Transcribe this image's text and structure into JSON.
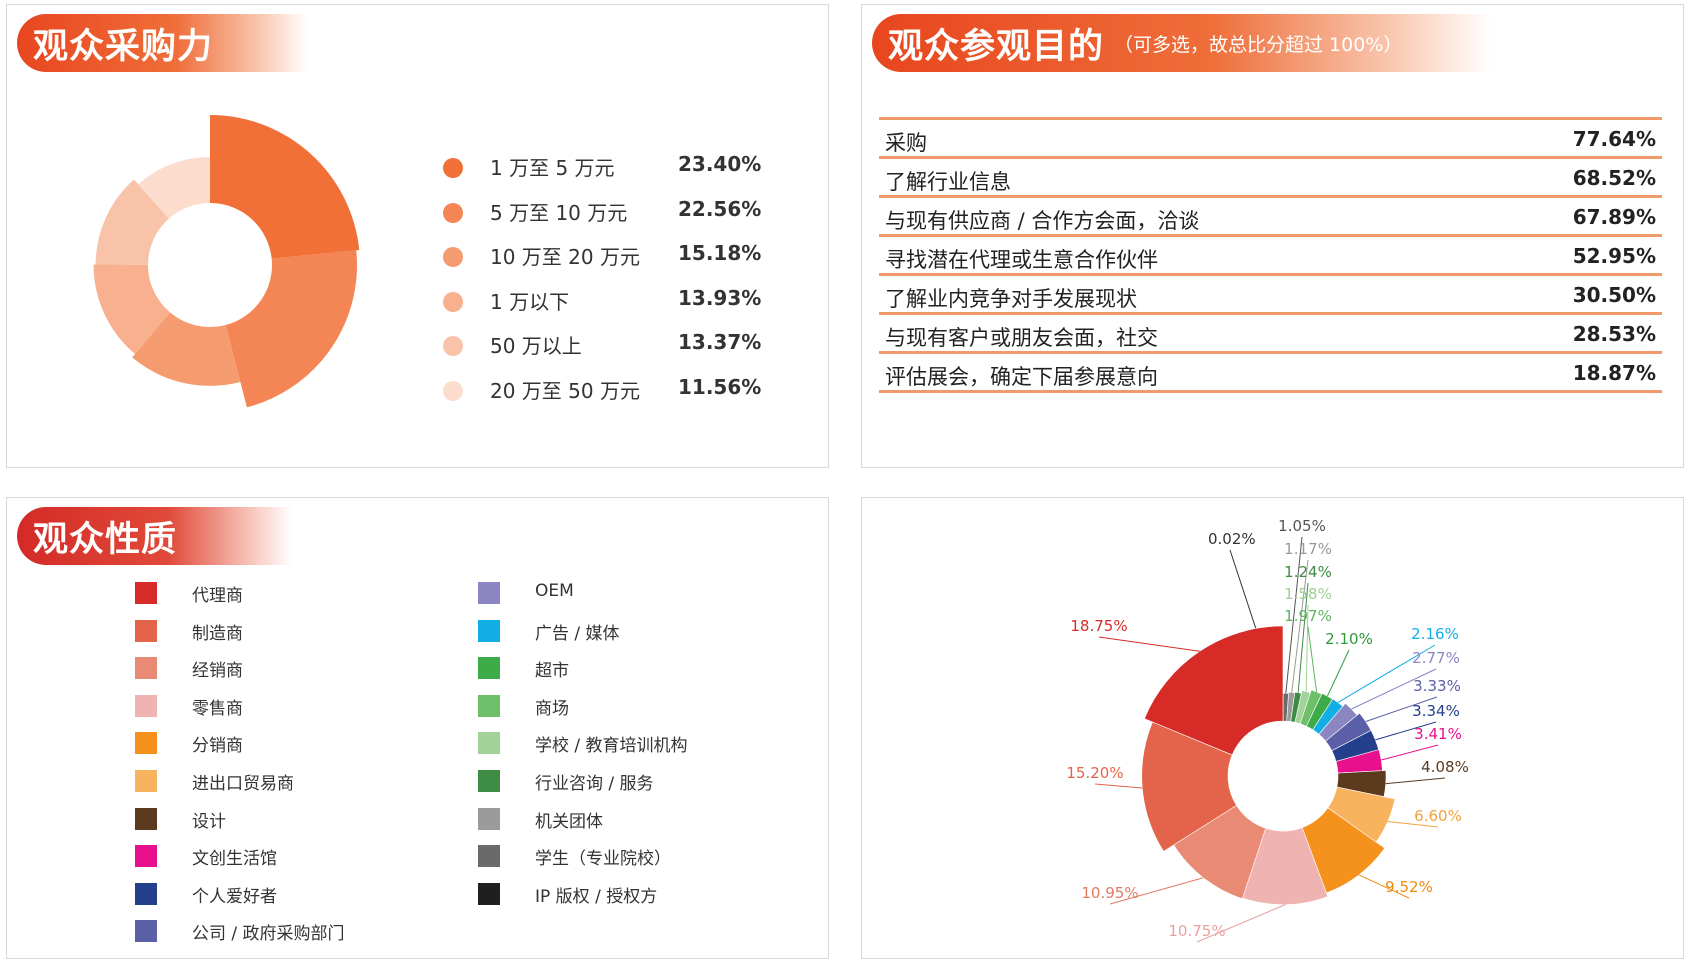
{
  "purchasing": {
    "title": "观众采购力",
    "chart_data": {
      "type": "pie",
      "categories": [
        "1 万至 5 万元",
        "5 万至 10 万元",
        "10 万至 20 万元",
        "1 万以下",
        "50 万以上",
        "20 万至 50 万元"
      ],
      "values": [
        23.4,
        22.56,
        15.18,
        13.93,
        13.37,
        11.56
      ],
      "labels": [
        "23.40%",
        "22.56%",
        "15.18%",
        "13.93%",
        "13.37%",
        "11.56%"
      ],
      "colors": [
        "#f07038",
        "#f38654",
        "#f59b70",
        "#f8b08e",
        "#f9c3a9",
        "#fcdccd"
      ]
    }
  },
  "purpose": {
    "title": "观众参观目的",
    "note": "（可多选，故总比分超过 100%）",
    "chart_data": {
      "type": "table",
      "rows": [
        {
          "label": "采购",
          "value": "77.64%"
        },
        {
          "label": "了解行业信息",
          "value": "68.52%"
        },
        {
          "label": "与现有供应商 / 合作方会面，洽谈",
          "value": "67.89%"
        },
        {
          "label": "寻找潜在代理或生意合作伙伴",
          "value": "52.95%"
        },
        {
          "label": "了解业内竞争对手发展现状",
          "value": "30.50%"
        },
        {
          "label": "与现有客户或朋友会面，社交",
          "value": "28.53%"
        },
        {
          "label": "评估展会，确定下届参展意向",
          "value": "18.87%"
        }
      ]
    }
  },
  "nature": {
    "title": "观众性质",
    "legend_left": [
      {
        "label": "代理商",
        "color": "#d62b27"
      },
      {
        "label": "制造商",
        "color": "#e3644a"
      },
      {
        "label": "经销商",
        "color": "#e88a74"
      },
      {
        "label": "零售商",
        "color": "#efb3b2"
      },
      {
        "label": "分销商",
        "color": "#f5921e"
      },
      {
        "label": "进出口贸易商",
        "color": "#f8b35e"
      },
      {
        "label": "设计",
        "color": "#5c3a1e"
      },
      {
        "label": "文创生活馆",
        "color": "#e8108c"
      },
      {
        "label": "个人爱好者",
        "color": "#243f8c"
      },
      {
        "label": "公司 / 政府采购部门",
        "color": "#5a5fa8"
      }
    ],
    "legend_right": [
      {
        "label": "OEM",
        "color": "#8b86c2"
      },
      {
        "label": "广告 / 媒体",
        "color": "#12aee6"
      },
      {
        "label": "超市",
        "color": "#3cab48"
      },
      {
        "label": "商场",
        "color": "#6dbf6a"
      },
      {
        "label": "学校 / 教育培训机构",
        "color": "#a3d29a"
      },
      {
        "label": "行业咨询 / 服务",
        "color": "#3e8b44"
      },
      {
        "label": "机关团体",
        "color": "#9b9b9b"
      },
      {
        "label": "学生（专业院校）",
        "color": "#6a6a6a"
      },
      {
        "label": "IP 版权 / 授权方",
        "color": "#1f1f1f"
      }
    ],
    "chart_data": {
      "type": "pie",
      "slices": [
        {
          "label": "0.02%",
          "value": 0.02,
          "color": "#1f1f1f",
          "label_color": "#333333"
        },
        {
          "label": "1.05%",
          "value": 1.05,
          "color": "#6a6a6a",
          "label_color": "#555555"
        },
        {
          "label": "1.17%",
          "value": 1.17,
          "color": "#9b9b9b",
          "label_color": "#999999"
        },
        {
          "label": "1.24%",
          "value": 1.24,
          "color": "#3e8b44",
          "label_color": "#3e8b44"
        },
        {
          "label": "1.58%",
          "value": 1.58,
          "color": "#a3d29a",
          "label_color": "#9fcf95"
        },
        {
          "label": "1.97%",
          "value": 1.97,
          "color": "#6dbf6a",
          "label_color": "#5fb25c"
        },
        {
          "label": "2.10%",
          "value": 2.1,
          "color": "#3cab48",
          "label_color": "#2f9a3b"
        },
        {
          "label": "2.16%",
          "value": 2.16,
          "color": "#12aee6",
          "label_color": "#12aee6"
        },
        {
          "label": "2.77%",
          "value": 2.77,
          "color": "#8b86c2",
          "label_color": "#8b86c2"
        },
        {
          "label": "3.33%",
          "value": 3.33,
          "color": "#5a5fa8",
          "label_color": "#5a5fa8"
        },
        {
          "label": "3.34%",
          "value": 3.34,
          "color": "#243f8c",
          "label_color": "#243f8c"
        },
        {
          "label": "3.41%",
          "value": 3.41,
          "color": "#e8108c",
          "label_color": "#e8108c"
        },
        {
          "label": "4.08%",
          "value": 4.08,
          "color": "#5c3a1e",
          "label_color": "#5c3a1e"
        },
        {
          "label": "6.60%",
          "value": 6.6,
          "color": "#f8b35e",
          "label_color": "#f3a23c"
        },
        {
          "label": "9.52%",
          "value": 9.52,
          "color": "#f5921e",
          "label_color": "#f08a10"
        },
        {
          "label": "10.75%",
          "value": 10.75,
          "color": "#efb3b2",
          "label_color": "#e8a0a0"
        },
        {
          "label": "10.95%",
          "value": 10.95,
          "color": "#e88a74",
          "label_color": "#e07a62"
        },
        {
          "label": "15.20%",
          "value": 15.2,
          "color": "#e3644a",
          "label_color": "#e3644a"
        },
        {
          "label": "18.75%",
          "value": 18.75,
          "color": "#d62b27",
          "label_color": "#d62b27"
        }
      ]
    }
  }
}
